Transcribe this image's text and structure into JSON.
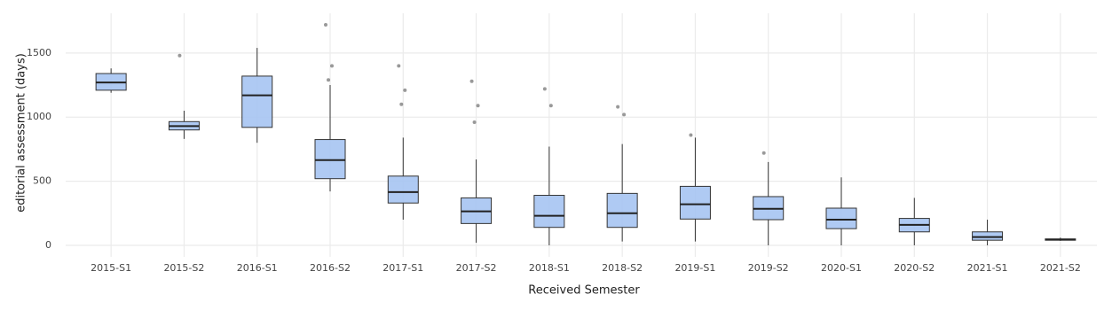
{
  "chart_data": {
    "type": "box",
    "x_label": "Received Semester",
    "y_label": "editorial assessment (days)",
    "categories": [
      "2015-S1",
      "2015-S2",
      "2016-S1",
      "2016-S2",
      "2017-S1",
      "2017-S2",
      "2018-S1",
      "2018-S2",
      "2019-S1",
      "2019-S2",
      "2020-S1",
      "2020-S2",
      "2021-S1",
      "2021-S2"
    ],
    "whisker_low": [
      1190,
      830,
      800,
      420,
      200,
      20,
      0,
      30,
      30,
      0,
      0,
      0,
      0,
      35
    ],
    "q1": [
      1210,
      900,
      920,
      520,
      330,
      170,
      140,
      140,
      205,
      200,
      130,
      105,
      40,
      40
    ],
    "median": [
      1270,
      930,
      1170,
      665,
      415,
      265,
      230,
      250,
      320,
      285,
      200,
      160,
      65,
      45
    ],
    "q3": [
      1340,
      965,
      1320,
      825,
      540,
      370,
      390,
      405,
      460,
      380,
      290,
      210,
      105,
      50
    ],
    "whisker_high": [
      1380,
      1050,
      1540,
      1250,
      840,
      670,
      770,
      790,
      840,
      650,
      530,
      370,
      200,
      60
    ],
    "outliers": [
      [],
      [
        1480
      ],
      [],
      [
        1720,
        1400,
        1290
      ],
      [
        1400,
        1210,
        1100
      ],
      [
        1280,
        1090,
        960
      ],
      [
        1220,
        1090
      ],
      [
        1080,
        1020
      ],
      [
        860
      ],
      [
        720
      ],
      [],
      [],
      [],
      []
    ],
    "color": "#a6c4f2",
    "ylim": [
      -90,
      1810
    ],
    "yticks": [
      0,
      500,
      1000,
      1500
    ],
    "grid": true
  }
}
